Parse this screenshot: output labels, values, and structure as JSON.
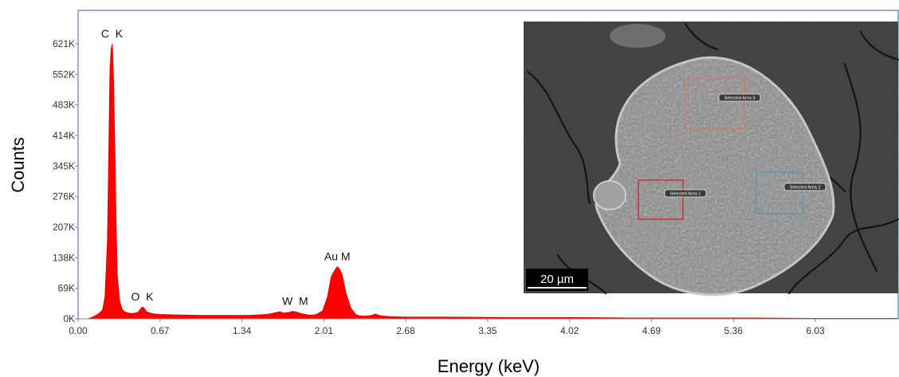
{
  "chart_data": {
    "type": "area",
    "title": "",
    "xlabel": "Energy (keV)",
    "ylabel": "Counts",
    "xlim": [
      0,
      6.7
    ],
    "ylim": [
      0,
      665
    ],
    "x_unit": "keV",
    "y_unit": "K counts",
    "x_tick_values": [
      0.0,
      0.67,
      1.34,
      2.01,
      2.68,
      3.35,
      4.02,
      4.69,
      5.36,
      6.03
    ],
    "x_tick_labels": [
      "0.00",
      "0.67",
      "1.34",
      "2.01",
      "2.68",
      "3.35",
      "4.02",
      "4.69",
      "5.36",
      "6.03"
    ],
    "y_tick_values": [
      0,
      69,
      138,
      207,
      276,
      345,
      414,
      483,
      552,
      621
    ],
    "y_tick_labels": [
      "0K",
      "69K",
      "138K",
      "207K",
      "276K",
      "345K",
      "414K",
      "483K",
      "552K",
      "621K"
    ],
    "grid": false,
    "legend": "none",
    "color": "#ff0000",
    "peaks": [
      {
        "label": "C  K",
        "x": 0.277,
        "y": 621
      },
      {
        "label": "O  K",
        "x": 0.525,
        "y": 27
      },
      {
        "label": "W  M",
        "x": 1.775,
        "y": 17
      },
      {
        "label": "Au M",
        "x": 2.12,
        "y": 118
      }
    ],
    "series": [
      {
        "x": [
          0.0,
          0.08,
          0.11,
          0.14,
          0.17,
          0.2,
          0.22,
          0.24,
          0.25,
          0.26,
          0.27,
          0.28,
          0.29,
          0.3,
          0.31,
          0.32,
          0.34,
          0.36,
          0.38,
          0.41,
          0.45,
          0.49,
          0.51,
          0.525,
          0.54,
          0.56,
          0.6,
          0.65,
          0.8,
          1.0,
          1.2,
          1.4,
          1.55,
          1.62,
          1.65,
          1.68,
          1.72,
          1.75,
          1.78,
          1.82,
          1.86,
          1.9,
          1.95,
          2.0,
          2.04,
          2.07,
          2.1,
          2.12,
          2.14,
          2.16,
          2.19,
          2.23,
          2.27,
          2.3,
          2.35,
          2.4,
          2.43,
          2.47,
          2.55,
          2.7,
          3.0,
          3.5,
          4.0,
          4.5,
          5.0,
          5.5,
          6.0,
          6.5,
          6.7
        ],
        "y": [
          0,
          0,
          3,
          7,
          12,
          20,
          50,
          180,
          360,
          560,
          610,
          621,
          540,
          400,
          230,
          100,
          40,
          22,
          16,
          13,
          12,
          15,
          22,
          27,
          24,
          16,
          12,
          10,
          9,
          8,
          8,
          8,
          10,
          14,
          16,
          13,
          14,
          17,
          16,
          12,
          10,
          8,
          10,
          18,
          50,
          95,
          110,
          118,
          112,
          100,
          60,
          25,
          10,
          7,
          6,
          8,
          11,
          7,
          5,
          4,
          4,
          3,
          3,
          2,
          2,
          2,
          1,
          1,
          1
        ]
      }
    ]
  },
  "inset": {
    "scale_bar_label": "20 µm",
    "areas": [
      {
        "label": "Selected Area 3",
        "color": "#d9795a"
      },
      {
        "label": "Selected Area 1",
        "color": "#cc2b2b"
      },
      {
        "label": "Selected Area 2",
        "color": "#5f96a3"
      }
    ]
  }
}
